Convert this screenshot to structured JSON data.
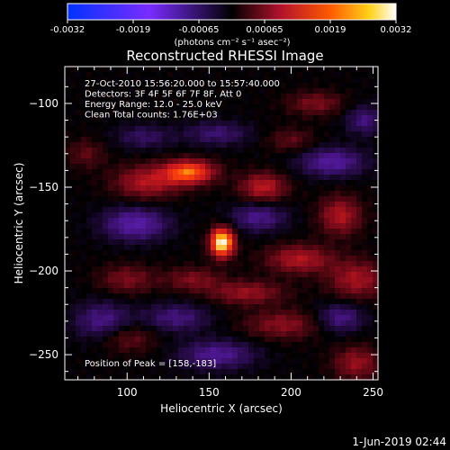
{
  "chart_data": {
    "type": "heatmap",
    "title": "Reconstructed RHESSI Image",
    "xlabel": "Heliocentric X (arcsec)",
    "ylabel": "Heliocentric Y (arcsec)",
    "xlim": [
      62,
      253
    ],
    "ylim": [
      -265,
      -78
    ],
    "x_ticks": [
      100,
      150,
      200,
      250
    ],
    "y_ticks": [
      -100,
      -150,
      -200,
      -250
    ],
    "colorbar": {
      "ticks": [
        "-0.0032",
        "-0.0019",
        "-0.00065",
        "0.00065",
        "0.0019",
        "0.0032"
      ],
      "range": [
        -0.0032,
        0.0032
      ],
      "unit_label": "(photons cm⁻² s⁻¹ asec⁻²)"
    },
    "annotations": [
      "27-Oct-2010 15:56:20.000 to 15:57:40.000",
      "Detectors: 3F 4F 5F 6F 7F 8F, Att 0",
      "Energy Range: 12.0 - 25.0 keV",
      "Clean     Total counts: 1.76E+03"
    ],
    "peak_label": "Position of Peak = [158,-183]",
    "peak": {
      "x": 158,
      "y": -183,
      "value": 0.0032
    },
    "sources": [
      {
        "x": 158,
        "y": -183,
        "value": 0.0032,
        "sx": 5,
        "sy": 6
      },
      {
        "x": 138,
        "y": -141,
        "value": 0.0021,
        "sx": 11,
        "sy": 5
      },
      {
        "x": 112,
        "y": -147,
        "value": 0.0012,
        "sx": 14,
        "sy": 7
      },
      {
        "x": 183,
        "y": -150,
        "value": 0.0013,
        "sx": 10,
        "sy": 6
      },
      {
        "x": 230,
        "y": -167,
        "value": 0.0012,
        "sx": 9,
        "sy": 8
      },
      {
        "x": 205,
        "y": -193,
        "value": 0.0012,
        "sx": 14,
        "sy": 6
      },
      {
        "x": 240,
        "y": -205,
        "value": 0.0011,
        "sx": 12,
        "sy": 8
      },
      {
        "x": 173,
        "y": -213,
        "value": 0.001,
        "sx": 16,
        "sy": 5
      },
      {
        "x": 140,
        "y": -205,
        "value": 0.0008,
        "sx": 12,
        "sy": 5
      },
      {
        "x": 195,
        "y": -232,
        "value": 0.0009,
        "sx": 16,
        "sy": 6
      },
      {
        "x": 100,
        "y": -205,
        "value": 0.0008,
        "sx": 12,
        "sy": 6
      },
      {
        "x": 100,
        "y": -240,
        "value": 0.0007,
        "sx": 12,
        "sy": 6
      },
      {
        "x": 240,
        "y": -255,
        "value": 0.001,
        "sx": 10,
        "sy": 7
      },
      {
        "x": 215,
        "y": -100,
        "value": 0.0008,
        "sx": 12,
        "sy": 5
      },
      {
        "x": 75,
        "y": -130,
        "value": 0.0006,
        "sx": 8,
        "sy": 6
      },
      {
        "x": 200,
        "y": -122,
        "value": 0.0006,
        "sx": 10,
        "sy": 5
      },
      {
        "x": 105,
        "y": -172,
        "value": -0.0013,
        "sx": 14,
        "sy": 7
      },
      {
        "x": 180,
        "y": -168,
        "value": -0.001,
        "sx": 12,
        "sy": 6
      },
      {
        "x": 225,
        "y": -135,
        "value": -0.0012,
        "sx": 14,
        "sy": 6
      },
      {
        "x": 85,
        "y": -230,
        "value": -0.001,
        "sx": 12,
        "sy": 8
      },
      {
        "x": 130,
        "y": -228,
        "value": -0.0009,
        "sx": 14,
        "sy": 6
      },
      {
        "x": 155,
        "y": -250,
        "value": -0.0011,
        "sx": 16,
        "sy": 6
      },
      {
        "x": 230,
        "y": -228,
        "value": -0.001,
        "sx": 10,
        "sy": 6
      },
      {
        "x": 155,
        "y": -118,
        "value": -0.0008,
        "sx": 14,
        "sy": 5
      },
      {
        "x": 110,
        "y": -120,
        "value": -0.0007,
        "sx": 12,
        "sy": 5
      },
      {
        "x": 245,
        "y": -110,
        "value": -0.0009,
        "sx": 8,
        "sy": 6
      }
    ]
  },
  "footer": {
    "timestamp": "1-Jun-2019 02:44"
  }
}
